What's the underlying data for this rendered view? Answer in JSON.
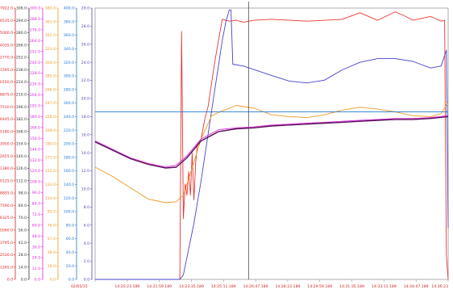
{
  "chart_data": {
    "type": "line",
    "title": "",
    "xlabel": "",
    "ylabel": "",
    "grid": false,
    "legend": "none",
    "x_tick_labels": [
      "02/05/15",
      "14:20:23.189",
      "14:21:59.189",
      "14:23:35.189",
      "14:25:11.189",
      "14:26:47.189",
      "14:28:23.189",
      "14:29:59.189",
      "14:31:35.189",
      "14:33:11.189",
      "14:34:47.189",
      "14:36:23"
    ],
    "y_axes": [
      {
        "name": "axis1",
        "color": "#dd2222",
        "range": [
          0,
          27922.0
        ],
        "ticks": [
          "27922.0",
          "26535.0",
          "25000.0",
          "24035.0",
          "22770.0",
          "21595.0",
          "20150.0",
          "18875.0",
          "17510.0",
          "16445.0",
          "15180.0",
          "13950.0",
          "12655.0",
          "11380.0",
          "10125.0",
          "8855.0",
          "7590.0",
          "6325.0",
          "5060.0",
          "3795.0",
          "2530.0",
          "1265.0",
          "0.0"
        ]
      },
      {
        "name": "axis2",
        "color": "#333333",
        "range": [
          0,
          308.0
        ],
        "ticks": [
          "308.0",
          "294.0",
          "280.0",
          "266.0",
          "252.0",
          "238.0",
          "224.0",
          "210.0",
          "196.0",
          "182.0",
          "168.0",
          "154.0",
          "140.0",
          "126.0",
          "112.0",
          "98.0",
          "84.0",
          "70.0",
          "56.0",
          "42.0",
          "28.0",
          "14.0",
          "0.0"
        ]
      },
      {
        "name": "axis3",
        "color": "#dd22dd",
        "range": [
          0,
          300.0
        ],
        "ticks": [
          "300.0",
          "288.0",
          "276.0",
          "264.0",
          "252.0",
          "240.0",
          "228.0",
          "216.0",
          "204.0",
          "192.0",
          "180.0",
          "168.0",
          "156.0",
          "144.0",
          "132.0",
          "120.0",
          "108.0",
          "96.0",
          "84.0",
          "72.0",
          "60.0",
          "48.0",
          "36.0",
          "24.0",
          "12.0",
          "0.0"
        ]
      },
      {
        "name": "axis4",
        "color": "#ee9922",
        "range": [
          0,
          380.0
        ],
        "ticks": [
          "380.0",
          "361.0",
          "342.0",
          "323.0",
          "304.0",
          "285.0",
          "266.0",
          "247.0",
          "228.0",
          "209.0",
          "190.0",
          "171.0",
          "152.0",
          "133.0",
          "114.0",
          "95.0",
          "76.0",
          "57.0",
          "38.0",
          "19.0",
          "0.0"
        ]
      },
      {
        "name": "axis5",
        "color": "#2277cc",
        "range": [
          0,
          400.0
        ],
        "ticks": [
          "400.0",
          "380.0",
          "360.0",
          "340.0",
          "320.0",
          "300.0",
          "280.0",
          "260.0",
          "240.0",
          "220.0",
          "200.0",
          "180.0",
          "160.0",
          "140.0",
          "120.0",
          "100.0",
          "80.0",
          "60.0",
          "40.0",
          "20.0",
          "0.0"
        ]
      },
      {
        "name": "axis6",
        "color": "#5544aa",
        "range": [
          0,
          29.0
        ],
        "ticks": [
          "29.0",
          "28.0",
          "26.0",
          "24.0",
          "22.0",
          "20.0",
          "18.0",
          "16.0",
          "14.0",
          "12.0",
          "10.0",
          "8.0",
          "6.0",
          "4.0",
          "2.0",
          "0.0"
        ]
      }
    ],
    "series": [
      {
        "axis": "axis6",
        "color": "#ee3333",
        "x": [
          0,
          0.24,
          0.245,
          0.25,
          0.255,
          0.26,
          0.265,
          0.27,
          0.275,
          0.28,
          0.285,
          0.29,
          0.3,
          0.31,
          0.32,
          0.33,
          0.34,
          0.36,
          0.38,
          0.4,
          0.42,
          0.45,
          0.5,
          0.6,
          0.7,
          0.75,
          0.8,
          0.85,
          0.88,
          0.9,
          0.95,
          0.98,
          0.99,
          0.995,
          1
        ],
        "y": [
          0,
          0,
          26.5,
          6.5,
          10.2,
          9.0,
          11.5,
          9.0,
          13.5,
          8.5,
          12.5,
          14.5,
          15.0,
          17.0,
          18.5,
          21.0,
          23.5,
          27.8,
          27.6,
          27.7,
          27.5,
          27.7,
          27.8,
          27.6,
          27.8,
          28.5,
          27.7,
          28.6,
          28.1,
          27.7,
          28.1,
          27.6,
          27.7,
          2.5,
          0
        ]
      },
      {
        "axis": "axis6",
        "color": "#4444cc",
        "x": [
          0,
          0.24,
          0.25,
          0.28,
          0.3,
          0.33,
          0.36,
          0.37,
          0.38,
          0.385,
          0.39,
          0.42,
          0.5,
          0.55,
          0.6,
          0.65,
          0.7,
          0.75,
          0.8,
          0.85,
          0.9,
          0.95,
          0.98,
          0.995,
          1
        ],
        "y": [
          0,
          0,
          0.5,
          6.0,
          10.5,
          18.0,
          25.5,
          27.5,
          28.8,
          28.8,
          23.0,
          22.8,
          21.8,
          21.2,
          21.0,
          21.3,
          22.4,
          23.2,
          23.6,
          23.6,
          23.3,
          22.6,
          22.8,
          24.5,
          5.5
        ]
      },
      {
        "axis": "axis6",
        "color": "#ee9922",
        "x": [
          0,
          0.05,
          0.1,
          0.15,
          0.2,
          0.23,
          0.25,
          0.28,
          0.3,
          0.33,
          0.36,
          0.4,
          0.45,
          0.5,
          0.55,
          0.6,
          0.65,
          0.7,
          0.75,
          0.8,
          0.85,
          0.9,
          0.95,
          0.98,
          1
        ],
        "y": [
          12.0,
          11.0,
          9.8,
          8.6,
          8.2,
          8.3,
          9.0,
          12.5,
          15.0,
          17.5,
          18.0,
          18.6,
          18.3,
          17.6,
          17.4,
          17.3,
          17.6,
          18.1,
          18.4,
          18.2,
          17.9,
          17.5,
          17.4,
          17.7,
          19.0
        ]
      },
      {
        "axis": "axis6",
        "color": "#2277cc",
        "x": [
          0,
          1
        ],
        "y": [
          17.9,
          17.9
        ]
      },
      {
        "axis": "axis6",
        "color": "#dd22dd",
        "x": [
          0,
          0.1,
          0.15,
          0.2,
          0.23,
          0.26,
          0.3,
          0.35,
          0.4,
          0.45,
          0.5,
          0.55,
          0.6,
          0.65,
          0.7,
          0.75,
          0.8,
          0.85,
          0.9,
          0.95,
          1
        ],
        "y": [
          14.8,
          13.0,
          12.4,
          12.0,
          12.2,
          13.2,
          15.0,
          16.0,
          16.2,
          16.3,
          16.5,
          16.6,
          16.7,
          16.8,
          16.9,
          17.0,
          17.1,
          17.2,
          17.2,
          17.3,
          17.5
        ]
      },
      {
        "axis": "axis6",
        "color": "#551155",
        "x": [
          0,
          0.1,
          0.15,
          0.2,
          0.23,
          0.26,
          0.3,
          0.35,
          0.4,
          0.45,
          0.5,
          0.55,
          0.6,
          0.65,
          0.7,
          0.75,
          0.8,
          0.85,
          0.9,
          0.95,
          1
        ],
        "y": [
          14.7,
          12.9,
          12.3,
          11.9,
          12.0,
          13.0,
          14.8,
          15.8,
          16.1,
          16.2,
          16.4,
          16.5,
          16.6,
          16.7,
          16.8,
          16.9,
          17.0,
          17.1,
          17.1,
          17.2,
          17.4
        ]
      }
    ],
    "cursor_x": 0.435
  }
}
